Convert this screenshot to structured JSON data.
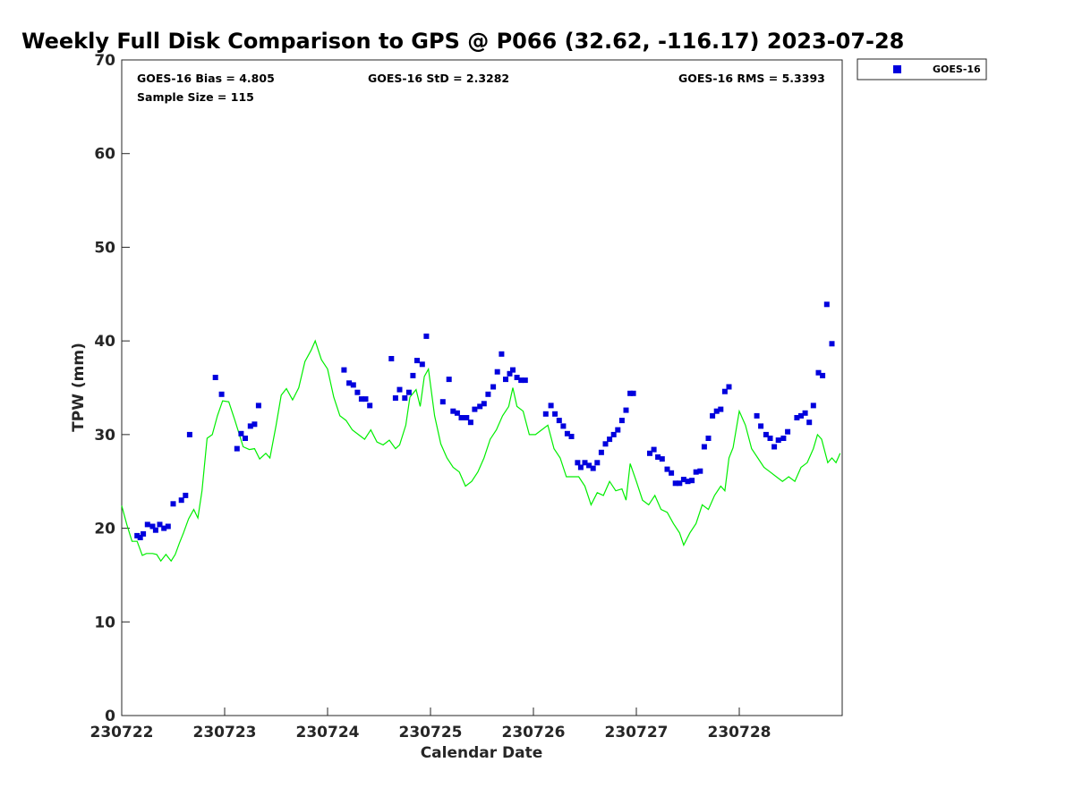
{
  "chart_data": {
    "type": "scatter",
    "title": "Weekly Full Disk Comparison to GPS @ P066 (32.62, -116.17) 2023-07-28",
    "xlabel": "Calendar Date",
    "ylabel": "TPW (mm)",
    "xlim": [
      230722,
      230729
    ],
    "ylim": [
      0,
      70
    ],
    "x_ticks": [
      "230722",
      "230723",
      "230724",
      "230725",
      "230726",
      "230727",
      "230728"
    ],
    "y_ticks": [
      "0",
      "10",
      "20",
      "30",
      "40",
      "50",
      "60",
      "70"
    ],
    "grid": false,
    "legend_position": "top-right",
    "stats": {
      "bias": "GOES-16 Bias = 4.805",
      "std": "GOES-16 StD = 2.3282",
      "rms": "GOES-16 RMS = 5.3393",
      "sample": "Sample Size = 115"
    },
    "colors": {
      "goes": "#0000dd",
      "gps": "#00ee00"
    },
    "series": [
      {
        "name": "GOES-16",
        "kind": "scatter",
        "x": [
          230722.15,
          230722.18,
          230722.21,
          230722.25,
          230722.3,
          230722.33,
          230722.37,
          230722.41,
          230722.45,
          230722.5,
          230722.58,
          230722.62,
          230722.66,
          230722.91,
          230722.97,
          230723.12,
          230723.16,
          230723.2,
          230723.25,
          230723.29,
          230723.33,
          230724.16,
          230724.21,
          230724.25,
          230724.29,
          230724.33,
          230724.37,
          230724.41,
          230724.62,
          230724.66,
          230724.7,
          230724.75,
          230724.79,
          230724.83,
          230724.87,
          230724.92,
          230724.96,
          230725.12,
          230725.18,
          230725.22,
          230725.26,
          230725.3,
          230725.35,
          230725.39,
          230725.43,
          230725.48,
          230725.52,
          230725.56,
          230725.61,
          230725.65,
          230725.69,
          230725.73,
          230725.77,
          230725.8,
          230725.84,
          230725.88,
          230725.92,
          230726.12,
          230726.17,
          230726.21,
          230726.25,
          230726.29,
          230726.33,
          230726.37,
          230726.43,
          230726.46,
          230726.5,
          230726.54,
          230726.58,
          230726.62,
          230726.66,
          230726.7,
          230726.74,
          230726.78,
          230726.82,
          230726.86,
          230726.9,
          230726.94,
          230726.97,
          230727.13,
          230727.17,
          230727.21,
          230727.25,
          230727.3,
          230727.34,
          230727.38,
          230727.42,
          230727.46,
          230727.5,
          230727.54,
          230727.58,
          230727.62,
          230727.66,
          230727.7,
          230727.74,
          230727.78,
          230727.82,
          230727.86,
          230727.9,
          230728.17,
          230728.21,
          230728.26,
          230728.3,
          230728.34,
          230728.38,
          230728.43,
          230728.47,
          230728.56,
          230728.6,
          230728.64,
          230728.68,
          230728.72,
          230728.77,
          230728.81,
          230728.85,
          230728.9
        ],
        "y": [
          19.2,
          19.0,
          19.4,
          20.4,
          20.2,
          19.8,
          20.4,
          20.0,
          20.2,
          22.6,
          23.0,
          23.5,
          30.0,
          36.1,
          34.3,
          28.5,
          30.1,
          29.6,
          30.9,
          31.1,
          33.1,
          36.9,
          35.5,
          35.3,
          34.5,
          33.8,
          33.8,
          33.1,
          38.1,
          33.9,
          34.8,
          33.9,
          34.5,
          36.3,
          37.9,
          37.5,
          40.5,
          33.5,
          35.9,
          32.5,
          32.3,
          31.8,
          31.8,
          31.3,
          32.7,
          33.0,
          33.3,
          34.3,
          35.1,
          36.7,
          38.6,
          35.9,
          36.5,
          36.9,
          36.1,
          35.8,
          35.8,
          32.2,
          33.1,
          32.2,
          31.5,
          30.9,
          30.1,
          29.8,
          27.0,
          26.5,
          27.0,
          26.7,
          26.4,
          27.0,
          28.1,
          29.0,
          29.5,
          30.0,
          30.5,
          31.5,
          32.6,
          34.4,
          34.4,
          28.0,
          28.4,
          27.6,
          27.4,
          26.3,
          25.9,
          24.8,
          24.8,
          25.2,
          25.0,
          25.1,
          26.0,
          26.1,
          28.7,
          29.6,
          32.0,
          32.5,
          32.7,
          34.6,
          35.1,
          32.0,
          30.9,
          30.0,
          29.6,
          28.7,
          29.4,
          29.6,
          30.3,
          31.8,
          32.0,
          32.3,
          31.3,
          33.1,
          36.6,
          36.3,
          43.9,
          39.7
        ]
      },
      {
        "name": "",
        "kind": "line",
        "x": [
          230722.0,
          230722.05,
          230722.1,
          230722.15,
          230722.2,
          230722.24,
          230722.3,
          230722.34,
          230722.38,
          230722.43,
          230722.48,
          230722.52,
          230722.56,
          230722.6,
          230722.65,
          230722.7,
          230722.74,
          230722.78,
          230722.83,
          230722.88,
          230722.93,
          230722.98,
          230723.04,
          230723.1,
          230723.18,
          230723.24,
          230723.29,
          230723.34,
          230723.4,
          230723.44,
          230723.5,
          230723.55,
          230723.6,
          230723.66,
          230723.72,
          230723.78,
          230723.84,
          230723.88,
          230723.94,
          230724.0,
          230724.06,
          230724.12,
          230724.18,
          230724.24,
          230724.3,
          230724.36,
          230724.42,
          230724.48,
          230724.54,
          230724.6,
          230724.66,
          230724.7,
          230724.76,
          230724.8,
          230724.86,
          230724.9,
          230724.94,
          230724.98,
          230725.04,
          230725.1,
          230725.16,
          230725.22,
          230725.28,
          230725.34,
          230725.4,
          230725.46,
          230725.52,
          230725.58,
          230725.64,
          230725.7,
          230725.76,
          230725.8,
          230725.84,
          230725.9,
          230725.96,
          230726.02,
          230726.08,
          230726.14,
          230726.2,
          230726.26,
          230726.32,
          230726.38,
          230726.44,
          230726.5,
          230726.56,
          230726.62,
          230726.68,
          230726.74,
          230726.8,
          230726.86,
          230726.9,
          230726.94,
          230727.0,
          230727.06,
          230727.12,
          230727.18,
          230727.24,
          230727.3,
          230727.36,
          230727.42,
          230727.46,
          230727.52,
          230727.58,
          230727.64,
          230727.7,
          230727.76,
          230727.82,
          230727.86,
          230727.9,
          230727.94,
          230728.0,
          230728.06,
          230728.12,
          230728.18,
          230728.24,
          230728.3,
          230728.36,
          230728.42,
          230728.48,
          230728.54,
          230728.6,
          230728.66,
          230728.72,
          230728.76,
          230728.8,
          230728.86,
          230728.9,
          230728.94,
          230728.98
        ],
        "y": [
          22.4,
          20.4,
          18.6,
          18.6,
          17.1,
          17.3,
          17.3,
          17.2,
          16.5,
          17.2,
          16.5,
          17.2,
          18.4,
          19.5,
          21.0,
          22.0,
          21.1,
          24.0,
          29.6,
          30.0,
          32.0,
          33.6,
          33.5,
          31.5,
          28.7,
          28.4,
          28.5,
          27.4,
          28.0,
          27.5,
          31.0,
          34.2,
          34.9,
          33.7,
          35.0,
          37.8,
          39.0,
          40.0,
          38.0,
          37.0,
          34.0,
          32.0,
          31.5,
          30.5,
          30.0,
          29.5,
          30.5,
          29.2,
          28.9,
          29.4,
          28.5,
          28.9,
          31.0,
          34.0,
          34.8,
          33.0,
          36.2,
          37.0,
          32.0,
          29.0,
          27.5,
          26.5,
          26.0,
          24.5,
          25.0,
          26.0,
          27.5,
          29.5,
          30.5,
          32.0,
          33.0,
          35.0,
          33.0,
          32.5,
          30.0,
          30.0,
          30.5,
          31.0,
          28.5,
          27.5,
          25.5,
          25.5,
          25.5,
          24.5,
          22.5,
          23.8,
          23.5,
          25.0,
          24.0,
          24.2,
          23.0,
          26.9,
          25.0,
          23.0,
          22.5,
          23.5,
          22.0,
          21.7,
          20.5,
          19.5,
          18.2,
          19.5,
          20.5,
          22.5,
          22.0,
          23.5,
          24.5,
          24.0,
          27.5,
          28.6,
          32.5,
          31.0,
          28.5,
          27.5,
          26.5,
          26.0,
          25.5,
          25.0,
          25.5,
          25.0,
          26.5,
          27.0,
          28.5,
          30.0,
          29.5,
          27.0,
          27.5,
          27.0,
          28.0
        ]
      }
    ]
  }
}
